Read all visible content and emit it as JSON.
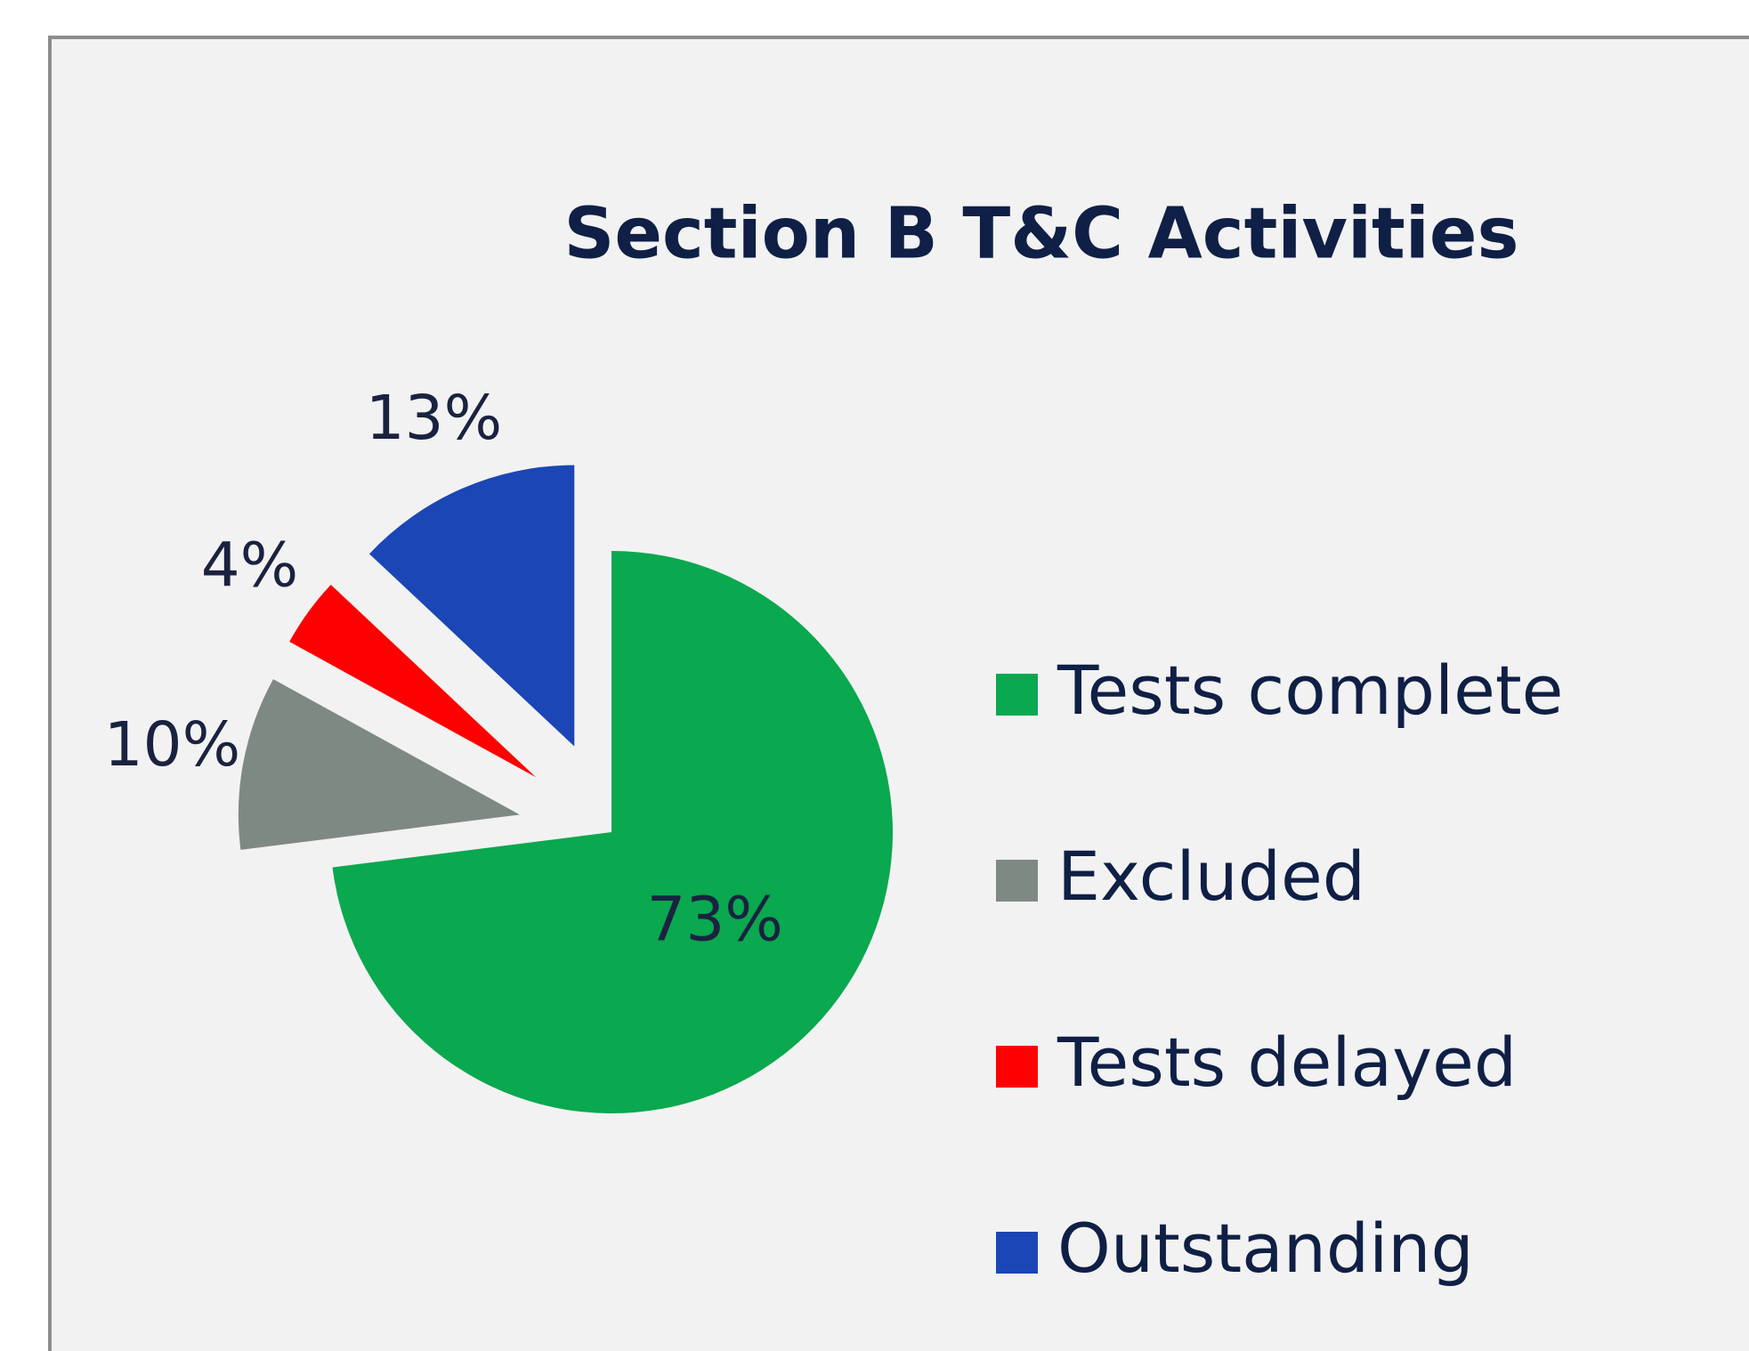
{
  "chart_data": {
    "type": "pie",
    "title": "Section B T&C Activities",
    "categories": [
      "Tests complete",
      "Excluded",
      "Tests delayed",
      "Outstanding"
    ],
    "values": [
      73,
      10,
      4,
      13
    ],
    "value_labels": [
      "73%",
      "10%",
      "4%",
      "13%"
    ],
    "colors": [
      "#0aa84f",
      "#7f8984",
      "#ff0000",
      "#1b46b5"
    ],
    "legend": "right"
  }
}
